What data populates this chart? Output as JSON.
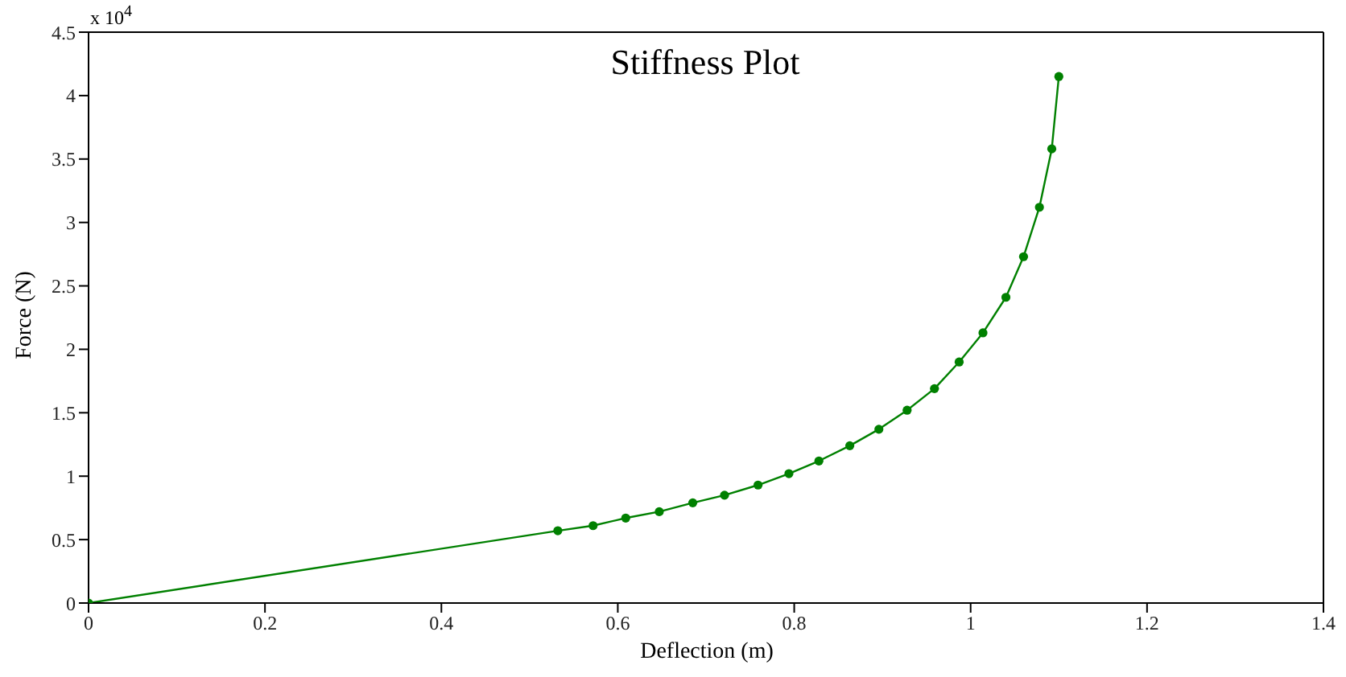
{
  "chart_data": {
    "type": "line",
    "title": "Stiffness Plot",
    "xlabel": "Deflection (m)",
    "ylabel": "Force (N)",
    "annotations": [
      "x 10$^{4}$"
    ],
    "x": [
      0,
      0.532,
      0.572,
      0.609,
      0.647,
      0.685,
      0.721,
      0.759,
      0.794,
      0.828,
      0.863,
      0.896,
      0.928,
      0.959,
      0.987,
      1.014,
      1.04,
      1.06,
      1.078,
      1.092,
      1.1
    ],
    "series": [
      {
        "color": "#008000",
        "values": [
          0,
          0.57,
          0.61,
          0.67,
          0.72,
          0.79,
          0.85,
          0.93,
          1.02,
          1.12,
          1.24,
          1.37,
          1.52,
          1.69,
          1.9,
          2.13,
          2.41,
          2.73,
          3.12,
          3.58,
          4.15
        ]
      }
    ],
    "xlim": [
      0,
      1.4
    ],
    "xticks": [
      0,
      0.2,
      0.4,
      0.6,
      0.8,
      1,
      1.2,
      1.4
    ],
    "ylim": [
      0,
      4.5
    ],
    "yticks": [
      0,
      0.5,
      1,
      1.5,
      2,
      2.5,
      3,
      3.5,
      4,
      4.5
    ],
    "grid": false,
    "legend": false,
    "marker": "circle",
    "line_style": "solid"
  }
}
